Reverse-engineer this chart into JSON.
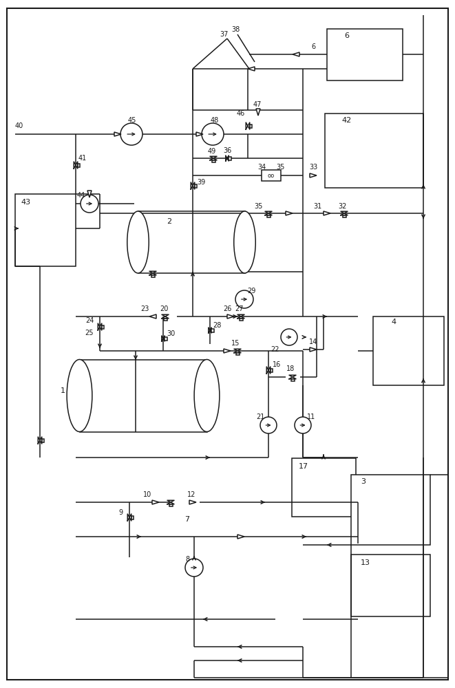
{
  "bg_color": "#ffffff",
  "line_color": "#1a1a1a",
  "lw": 1.1,
  "fig_width": 6.61,
  "fig_height": 10.0,
  "dpi": 100
}
